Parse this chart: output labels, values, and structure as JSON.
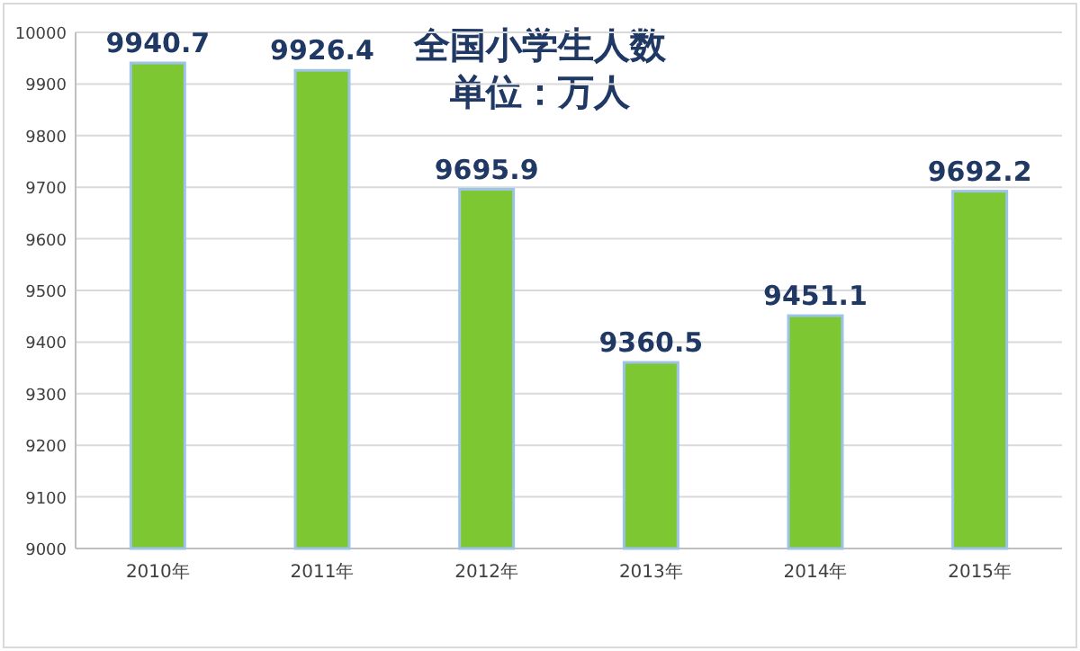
{
  "chart_data": {
    "type": "bar",
    "title": "全国小学生人数",
    "subtitle": "单位：万人",
    "categories": [
      "2010年",
      "2011年",
      "2012年",
      "2013年",
      "2014年",
      "2015年"
    ],
    "values": [
      9940.7,
      9926.4,
      9695.9,
      9360.5,
      9451.1,
      9692.2
    ],
    "color": "#7dc832",
    "ylim": [
      9000,
      10000
    ],
    "yticks": [
      9000,
      9100,
      9200,
      9300,
      9400,
      9500,
      9600,
      9700,
      9800,
      9900,
      10000
    ],
    "grid": "y",
    "data_labels": true
  }
}
